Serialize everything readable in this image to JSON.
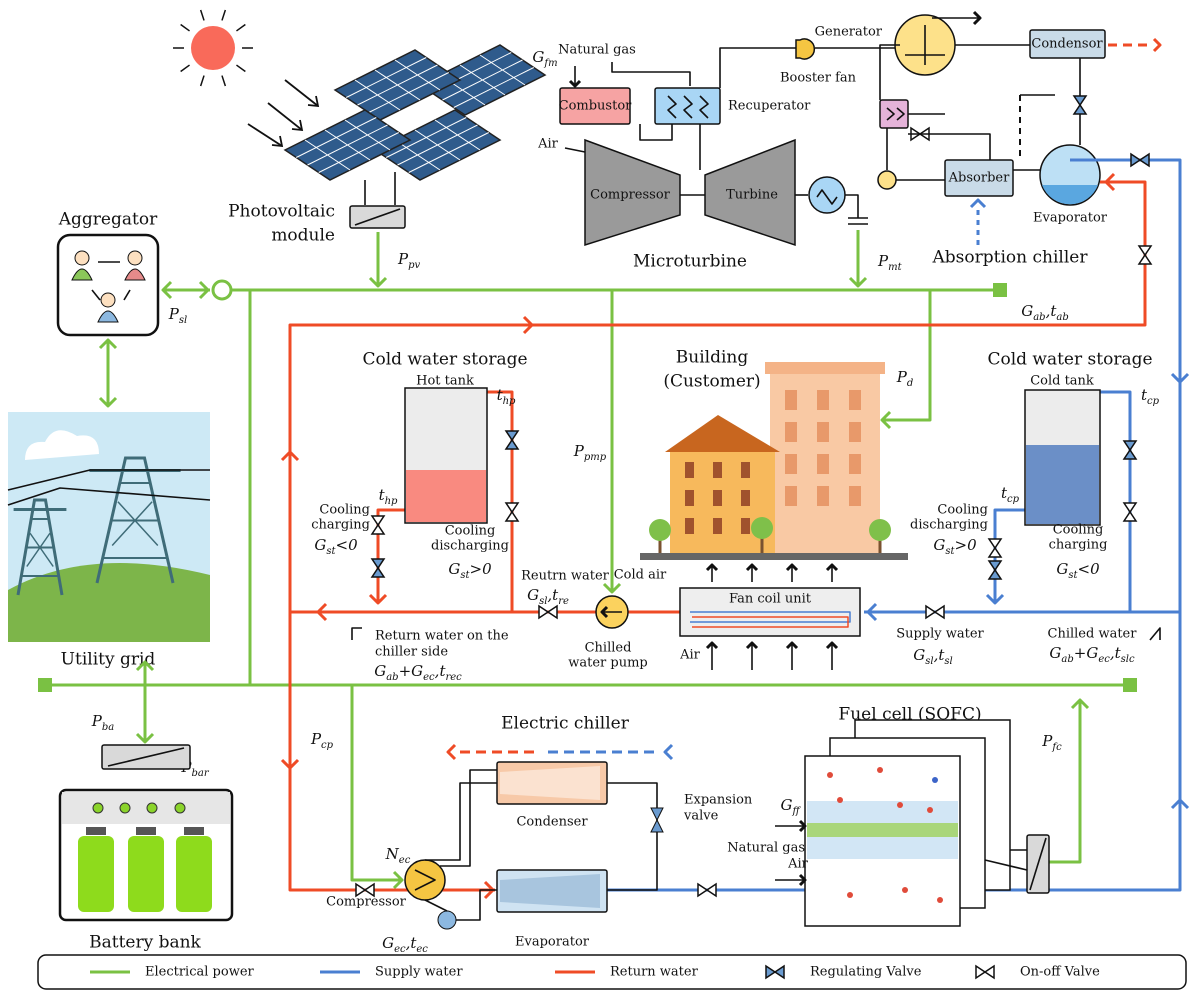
{
  "aggregator": "Aggregator",
  "pv": [
    "Photovoltaic",
    "module"
  ],
  "microturbine": {
    "natural_gas": "Natural gas",
    "combustor": "Combustor",
    "recuperator": "Recuperator",
    "air": "Air",
    "compressor": "Compressor",
    "turbine": "Turbine",
    "title": "Microturbine"
  },
  "absorption": {
    "booster_fan": "Booster fan",
    "generator": "Generator",
    "condensor": "Condensor",
    "absorber": "Absorber",
    "evaporator": "Evaporator",
    "title": "Absorption chiller"
  },
  "utility_grid": "Utility grid",
  "storage_hot": {
    "title": "Cold water storage",
    "tank": "Hot tank",
    "charging": [
      "Cooling",
      "charging"
    ],
    "discharging": [
      "Cooling",
      "discharging"
    ]
  },
  "storage_cold": {
    "title": "Cold water storage",
    "tank": "Cold tank",
    "discharging": [
      "Cooling",
      "discharging"
    ],
    "charging": [
      "Cooling",
      "charging"
    ]
  },
  "building": [
    "Building",
    "(Customer)"
  ],
  "return_water": "Reutrn water",
  "pump": [
    "Chilled",
    "water pump"
  ],
  "fan_coil": "Fan coil unit",
  "cold_air": "Cold air",
  "air": "Air",
  "return_chiller": [
    "Return water on the",
    "chiller side"
  ],
  "supply_water": "Supply water",
  "chilled_water": "Chilled water",
  "electric_chiller": {
    "title": "Electric chiller",
    "condenser": "Condenser",
    "expansion": [
      "Expansion",
      "valve"
    ],
    "compressor": "Compressor",
    "evaporator": "Evaporator"
  },
  "fuel_cell": {
    "title": "Fuel cell (SOFC)",
    "natural_gas": "Natural gas",
    "air": "Air"
  },
  "battery": "Battery bank",
  "symbols": {
    "G_fm": [
      [
        "G",
        "fm"
      ]
    ],
    "P_pv": [
      [
        "P",
        "pv"
      ]
    ],
    "P_mt": [
      [
        "P",
        "mt"
      ]
    ],
    "P_sl": [
      [
        "P",
        "sl"
      ]
    ],
    "G_ab_t_ab": [
      [
        "G",
        "ab"
      ],
      [
        ",t",
        "ab"
      ]
    ],
    "P_d": [
      [
        "P",
        "d"
      ]
    ],
    "t_hp_top": [
      [
        "t",
        "hp"
      ]
    ],
    "t_hp_side": [
      [
        "t",
        "hp"
      ]
    ],
    "t_cp_top": [
      [
        "t",
        "cp"
      ]
    ],
    "t_cp_side": [
      [
        "t",
        "cp"
      ]
    ],
    "P_pmp": [
      [
        "P",
        "pmp"
      ]
    ],
    "G_st_hot_charge": [
      [
        "G",
        "st"
      ],
      [
        "<0"
      ]
    ],
    "G_st_hot_discharge": [
      [
        "G",
        "st"
      ],
      [
        ">0"
      ]
    ],
    "G_st_cold_discharge": [
      [
        "G",
        "st"
      ],
      [
        ">0"
      ]
    ],
    "G_st_cold_charge": [
      [
        "G",
        "st"
      ],
      [
        "<0"
      ]
    ],
    "G_sl_t_re": [
      [
        "G",
        "sl"
      ],
      [
        ",t",
        "re"
      ]
    ],
    "G_ab_G_ec_t_rec": [
      [
        "G",
        "ab"
      ],
      [
        "+G",
        "ec"
      ],
      [
        ",t",
        "rec"
      ]
    ],
    "G_sl_t_sl": [
      [
        "G",
        "sl"
      ],
      [
        ",t",
        "sl"
      ]
    ],
    "G_ab_G_ec_t_slc": [
      [
        "G",
        "ab"
      ],
      [
        "+G",
        "ec"
      ],
      [
        ",t",
        "slc"
      ]
    ],
    "P_ba": [
      [
        "P",
        "ba"
      ]
    ],
    "P_bar": [
      [
        "P",
        "bar"
      ]
    ],
    "P_cp": [
      [
        "P",
        "cp"
      ]
    ],
    "N_ec": [
      [
        "N",
        "ec"
      ]
    ],
    "G_ff": [
      [
        "G",
        "ff"
      ]
    ],
    "P_fc": [
      [
        "P",
        "fc"
      ]
    ],
    "G_ec_t_ec": [
      [
        "G",
        "ec"
      ],
      [
        ",t",
        "ec"
      ]
    ]
  },
  "legend": [
    {
      "label": "Electrical power",
      "color": "#7ac143"
    },
    {
      "label": "Supply water",
      "color": "#4a7fd1"
    },
    {
      "label": "Return water",
      "color": "#ef4b26"
    },
    {
      "label": "Regulating Valve",
      "fill": "#6a9bd0"
    },
    {
      "label": "On-off Valve",
      "fill": "#ffffff"
    }
  ]
}
